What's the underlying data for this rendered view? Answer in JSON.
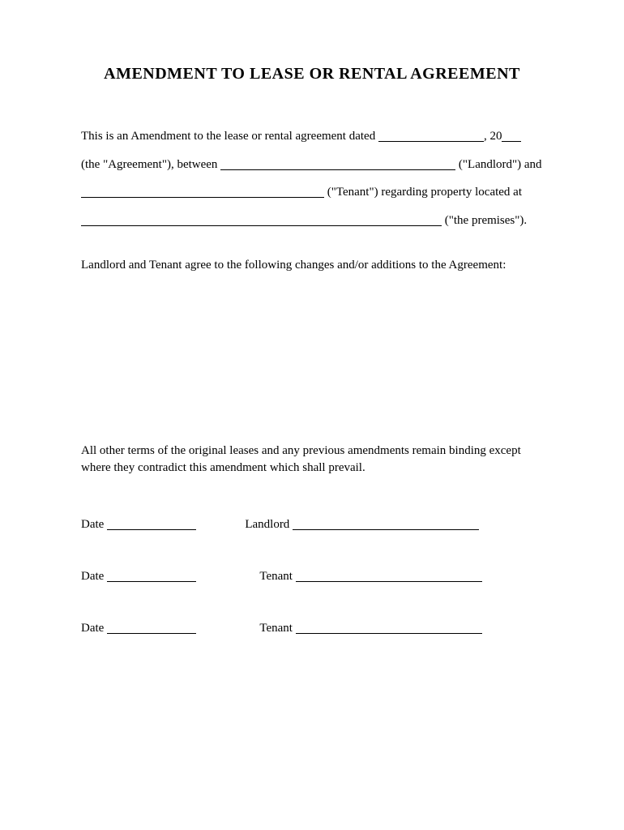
{
  "title": "AMENDMENT TO LEASE OR RENTAL AGREEMENT",
  "intro": {
    "part1": "This is an Amendment to the lease or rental agreement dated ",
    "part2": ", 20",
    "part3": " (the \"Agreement\"), between ",
    "part4": " (\"Landlord\") and ",
    "part5": " (\"Tenant\") regarding property located at ",
    "part6": " (\"the premises\")."
  },
  "changes_label": "Landlord and Tenant agree to the following changes and/or additions to the Agreement:",
  "closing": "All other terms of the original leases and any previous amendments remain binding except where they contradict this amendment which shall prevail.",
  "signatures": [
    {
      "date_label": "Date",
      "role_label": "Landlord",
      "role_class": "role-landlord"
    },
    {
      "date_label": "Date",
      "role_label": "Tenant",
      "role_class": "role-tenant"
    },
    {
      "date_label": "Date",
      "role_label": "Tenant",
      "role_class": "role-tenant"
    }
  ],
  "colors": {
    "background": "#ffffff",
    "text": "#000000",
    "line": "#000000"
  },
  "typography": {
    "title_fontsize": 20,
    "body_fontsize": 15,
    "font_family": "Times New Roman"
  }
}
